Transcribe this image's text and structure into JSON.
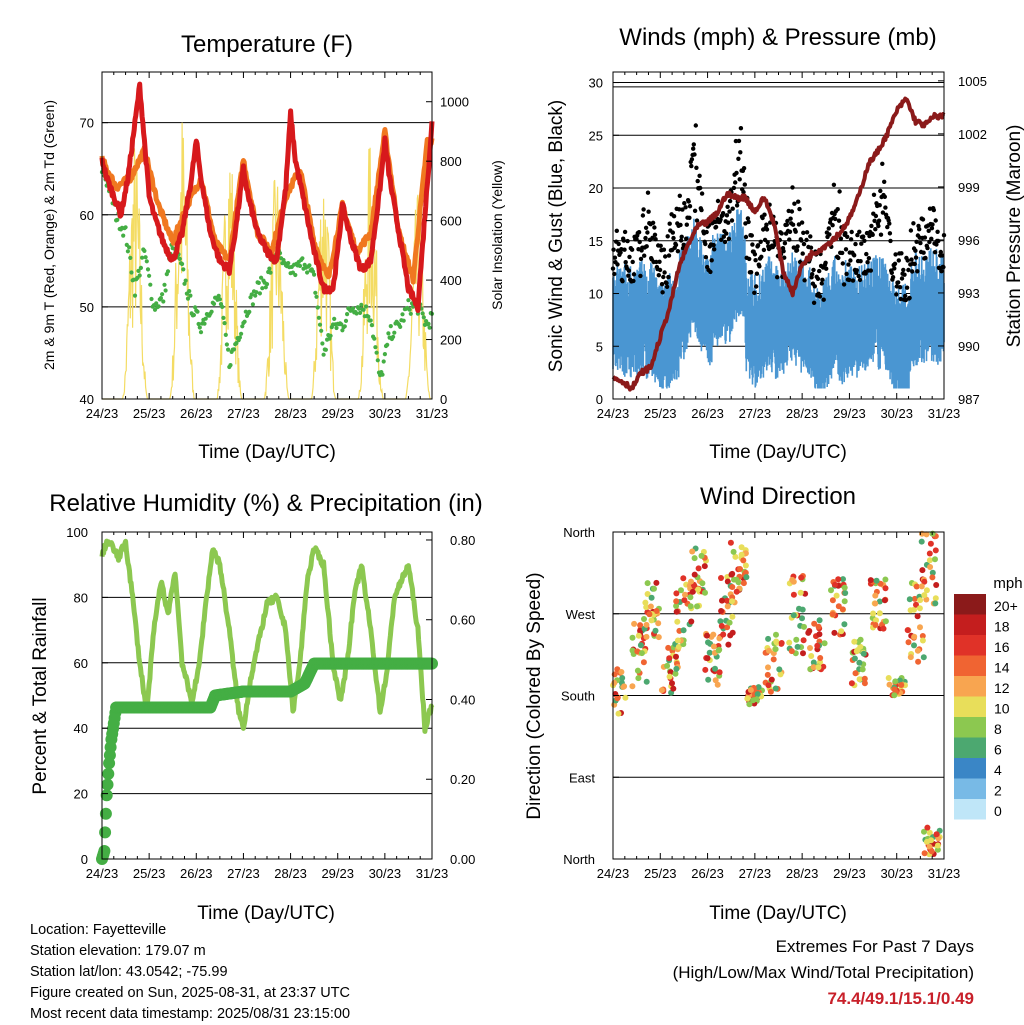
{
  "colors": {
    "temp2m": "#d7191c",
    "temp9m": "#f07820",
    "dewpoint": "#44ae44",
    "solar": "#f4dc64",
    "wind": "#4a96d2",
    "gust": "#000000",
    "pressure": "#8b1a1a",
    "rh": "#8cc850",
    "precip": "#44ae44",
    "extremes": "#c8202a"
  },
  "time_ticks": [
    "24/23",
    "25/23",
    "26/23",
    "27/23",
    "28/23",
    "29/23",
    "30/23",
    "31/23"
  ],
  "footer": {
    "location": "Location: Fayetteville",
    "elevation": "Station elevation: 179.07 m",
    "latlon": "Station lat/lon: 43.0542; -75.99",
    "created": "Figure created on Sun, 2025-08-31, at 23:37 UTC",
    "recent": "Most recent data timestamp: 2025/08/31 23:15:00"
  },
  "extremes": {
    "title": "Extremes For Past 7 Days",
    "subtitle": "(High/Low/Max Wind/Total Precipitation)",
    "values": "74.4/49.1/15.1/0.49"
  },
  "chart_data": [
    {
      "type": "line",
      "title": "Temperature (F)",
      "xlabel": "Time (Day/UTC)",
      "ylabel": "2m & 9m T (Red, Orange) & 2m Td (Green)",
      "ylabel_right": "Solar Insolation (Yellow)",
      "ylim": [
        40,
        75.5
      ],
      "yticks": [
        40,
        50,
        60,
        70
      ],
      "ylim_right": [
        0,
        1100
      ],
      "yticks_right": [
        0,
        200,
        400,
        600,
        800,
        1000
      ],
      "x_days": [
        0,
        7
      ],
      "series": [
        {
          "name": "2m T",
          "x": [
            0,
            0.1,
            0.25,
            0.4,
            0.55,
            0.7,
            0.8,
            0.9,
            1.0,
            1.1,
            1.3,
            1.5,
            1.7,
            1.9,
            2.0,
            2.1,
            2.3,
            2.5,
            2.7,
            2.85,
            3.0,
            3.1,
            3.3,
            3.5,
            3.7,
            3.9,
            4.0,
            4.1,
            4.3,
            4.5,
            4.7,
            4.9,
            5.0,
            5.1,
            5.3,
            5.5,
            5.7,
            5.9,
            6.0,
            6.1,
            6.3,
            6.5,
            6.7,
            6.85,
            7.0
          ],
          "values": [
            66,
            64,
            62,
            60,
            64,
            70,
            74,
            68,
            62,
            60,
            57,
            55,
            58,
            64,
            68,
            64,
            58,
            55,
            54,
            59,
            65,
            62,
            58,
            56,
            55,
            63,
            71,
            66,
            61,
            56,
            52,
            52,
            56,
            61,
            57,
            54,
            55,
            63,
            68,
            64,
            58,
            52,
            50,
            60,
            70
          ]
        },
        {
          "name": "9m T",
          "x": [
            0,
            0.3,
            0.6,
            0.9,
            1.2,
            1.5,
            1.8,
            2.1,
            2.4,
            2.7,
            3.0,
            3.3,
            3.6,
            3.9,
            4.2,
            4.5,
            4.8,
            5.1,
            5.4,
            5.7,
            6.0,
            6.3,
            6.6,
            6.9
          ],
          "values": [
            66,
            63,
            64,
            67,
            61,
            57,
            61,
            64,
            57,
            55,
            66,
            58,
            56,
            62,
            65,
            57,
            53,
            61,
            56,
            58,
            69,
            58,
            53,
            68
          ]
        },
        {
          "name": "2m Td",
          "x": [
            0,
            0.15,
            0.3,
            0.5,
            0.7,
            0.9,
            1.1,
            1.3,
            1.5,
            1.7,
            1.9,
            2.1,
            2.3,
            2.5,
            2.7,
            2.9,
            3.1,
            3.3,
            3.5,
            3.7,
            3.9,
            4.1,
            4.3,
            4.5,
            4.7,
            4.9,
            5.1,
            5.3,
            5.5,
            5.7,
            5.9,
            6.1,
            6.3,
            6.5,
            6.7,
            6.9,
            7.0
          ],
          "values": [
            65,
            63,
            60,
            58,
            52,
            56,
            50,
            51,
            57,
            54,
            50,
            48,
            50,
            51,
            44,
            47,
            50,
            52,
            53,
            56,
            54,
            54,
            55,
            53,
            45,
            48,
            48,
            50,
            50,
            49,
            42,
            47,
            48,
            50,
            50,
            48,
            49
          ]
        },
        {
          "name": "Solar",
          "peaks_day": [
            0.7,
            1.7,
            2.7,
            3.7,
            4.7,
            5.7,
            6.7
          ],
          "peak_values": [
            900,
            1000,
            950,
            800,
            850,
            900,
            700
          ]
        }
      ]
    },
    {
      "type": "scatter",
      "title": "Winds (mph) & Pressure (mb)",
      "xlabel": "Time (Day/UTC)",
      "ylabel": "Sonic Wind & Gust (Blue, Black)",
      "ylabel_right": "Station Pressure (Maroon)",
      "ylim": [
        0,
        31
      ],
      "yticks": [
        0,
        5,
        10,
        15,
        20,
        25,
        30
      ],
      "ylim_right": [
        987,
        1005.5
      ],
      "yticks_right": [
        987,
        990,
        993,
        996,
        999,
        1002,
        1005
      ],
      "wind_base": [
        8,
        6,
        9,
        11,
        7,
        8,
        6,
        8,
        6,
        9
      ],
      "gust_peaks_day": [
        0.8,
        1.3,
        1.7,
        2.7,
        3.3,
        3.8,
        4.7,
        5.7,
        6.7
      ],
      "gust_peak_values": [
        19,
        18,
        24,
        22,
        18,
        17,
        21,
        24,
        14
      ],
      "pressure": {
        "name": "Station Pressure",
        "x": [
          0,
          0.2,
          0.4,
          0.6,
          0.8,
          1.0,
          1.2,
          1.4,
          1.6,
          1.8,
          2.0,
          2.2,
          2.4,
          2.6,
          2.8,
          3.0,
          3.2,
          3.4,
          3.6,
          3.8,
          4.0,
          4.2,
          4.4,
          4.6,
          4.8,
          5.0,
          5.2,
          5.4,
          5.6,
          5.8,
          6.0,
          6.2,
          6.4,
          6.6,
          6.8,
          7.0
        ],
        "values": [
          988.2,
          988.0,
          987.6,
          988.5,
          988.8,
          990.5,
          992.2,
          994.5,
          995.8,
          996.8,
          997.0,
          997.5,
          998.6,
          998.4,
          998.4,
          997.6,
          998.4,
          997.0,
          994.2,
          993.0,
          994.6,
          995.2,
          995.5,
          995.9,
          996.4,
          997.2,
          998.5,
          1000.3,
          1001.0,
          1002.0,
          1003.3,
          1004.0,
          1002.7,
          1002.5,
          1003.0,
          1003.0
        ]
      }
    },
    {
      "type": "line",
      "title": "Relative Humidity (%) & Precipitation (in)",
      "xlabel": "Time (Day/UTC)",
      "ylabel": "Percent & Total Rainfall",
      "ylim": [
        0,
        100
      ],
      "yticks": [
        0,
        20,
        40,
        60,
        80,
        100
      ],
      "ylim_right": [
        0,
        0.82
      ],
      "yticks_right": [
        "0.00",
        "0.20",
        "0.40",
        "0.60",
        "0.80"
      ],
      "series": [
        {
          "name": "RH",
          "x": [
            0,
            0.1,
            0.2,
            0.35,
            0.5,
            0.65,
            0.8,
            0.95,
            1.1,
            1.25,
            1.4,
            1.55,
            1.7,
            1.9,
            2.05,
            2.2,
            2.35,
            2.5,
            2.7,
            2.9,
            3.0,
            3.15,
            3.3,
            3.5,
            3.7,
            3.9,
            4.05,
            4.2,
            4.35,
            4.5,
            4.7,
            4.9,
            5.05,
            5.2,
            5.35,
            5.5,
            5.7,
            5.9,
            6.05,
            6.2,
            6.35,
            6.5,
            6.7,
            6.85,
            7.0
          ],
          "values": [
            93,
            97,
            96,
            92,
            97,
            80,
            60,
            45,
            70,
            85,
            75,
            88,
            60,
            48,
            58,
            78,
            95,
            90,
            70,
            45,
            40,
            55,
            65,
            78,
            80,
            70,
            45,
            60,
            85,
            95,
            90,
            60,
            48,
            60,
            80,
            90,
            70,
            45,
            58,
            80,
            85,
            90,
            70,
            40,
            47
          ]
        },
        {
          "name": "Precip",
          "x": [
            0,
            0.05,
            0.1,
            0.15,
            0.2,
            0.25,
            0.3,
            0.4,
            1.0,
            2.0,
            2.3,
            2.4,
            3.0,
            4.0,
            4.3,
            4.5,
            5.0,
            6.0,
            7.0
          ],
          "values": [
            0.0,
            0.02,
            0.16,
            0.24,
            0.3,
            0.34,
            0.38,
            0.38,
            0.38,
            0.38,
            0.38,
            0.41,
            0.42,
            0.42,
            0.44,
            0.49,
            0.49,
            0.49,
            0.49
          ]
        }
      ]
    },
    {
      "type": "scatter",
      "title": "Wind Direction",
      "xlabel": "Time (Day/UTC)",
      "ylabel": "Direction (Colored By Speed)",
      "ylim": [
        0,
        360
      ],
      "yticks": [
        "North",
        "East",
        "South",
        "West",
        "North"
      ],
      "legend_title": "mph",
      "legend_labels": [
        "20+",
        "18",
        "16",
        "14",
        "12",
        "10",
        "8",
        "6",
        "4",
        "2",
        "0"
      ],
      "legend_colors": [
        "#8b1a1a",
        "#c41e1e",
        "#e03228",
        "#f06432",
        "#f8a550",
        "#e8de5a",
        "#8cc850",
        "#4ca870",
        "#3a86c6",
        "#78bae6",
        "#bfe6f8"
      ],
      "clusters": [
        {
          "x": 0.1,
          "dir": 185,
          "spread": 25
        },
        {
          "x": 0.55,
          "dir": 230,
          "spread": 40
        },
        {
          "x": 0.85,
          "dir": 275,
          "spread": 35
        },
        {
          "x": 1.2,
          "dir": 210,
          "spread": 30
        },
        {
          "x": 1.5,
          "dir": 270,
          "spread": 40
        },
        {
          "x": 1.8,
          "dir": 310,
          "spread": 35
        },
        {
          "x": 2.1,
          "dir": 220,
          "spread": 30
        },
        {
          "x": 2.4,
          "dir": 270,
          "spread": 45
        },
        {
          "x": 2.65,
          "dir": 320,
          "spread": 30
        },
        {
          "x": 3.0,
          "dir": 180,
          "spread": 10
        },
        {
          "x": 3.4,
          "dir": 215,
          "spread": 35
        },
        {
          "x": 3.9,
          "dir": 270,
          "spread": 45
        },
        {
          "x": 4.3,
          "dir": 235,
          "spread": 30
        },
        {
          "x": 4.75,
          "dir": 280,
          "spread": 35
        },
        {
          "x": 5.2,
          "dir": 215,
          "spread": 30
        },
        {
          "x": 5.6,
          "dir": 280,
          "spread": 30
        },
        {
          "x": 6.0,
          "dir": 190,
          "spread": 10
        },
        {
          "x": 6.4,
          "dir": 260,
          "spread": 45
        },
        {
          "x": 6.7,
          "dir": 320,
          "spread": 40
        },
        {
          "x": 6.75,
          "dir": 20,
          "spread": 15
        }
      ]
    }
  ]
}
